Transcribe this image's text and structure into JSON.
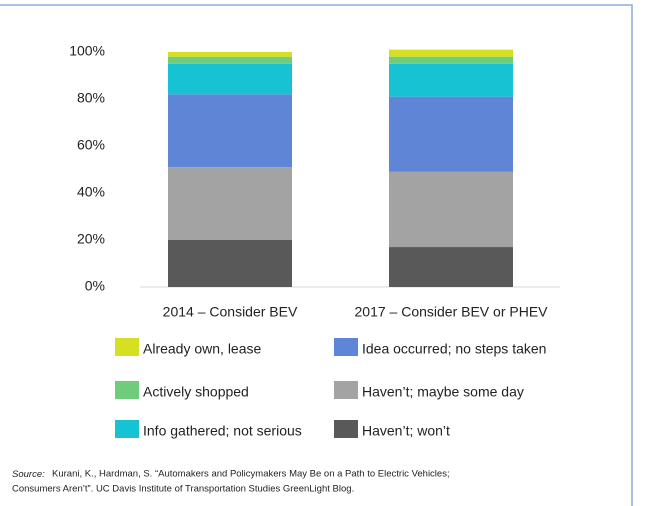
{
  "chart_data": {
    "type": "stacked_bar",
    "categories": [
      "2014 – Consider BEV",
      "2017 – Consider BEV or PHEV"
    ],
    "series": [
      {
        "name": "Haven’t; won’t",
        "color": "#595959",
        "values": [
          20,
          17
        ]
      },
      {
        "name": "Haven’t; maybe some day",
        "color": "#a3a3a3",
        "values": [
          31,
          32
        ]
      },
      {
        "name": "Idea occurred; no steps taken",
        "color": "#5f86d6",
        "values": [
          31,
          32
        ]
      },
      {
        "name": "Info gathered; not serious",
        "color": "#17c2d2",
        "values": [
          13,
          14
        ]
      },
      {
        "name": "Actively shopped",
        "color": "#6fcc7c",
        "values": [
          3,
          3
        ]
      },
      {
        "name": "Already own, lease",
        "color": "#d6df22",
        "values": [
          2,
          3
        ]
      }
    ],
    "ylim": [
      0,
      100
    ],
    "yticks": [
      {
        "value": 0,
        "label": "0%"
      },
      {
        "value": 20,
        "label": "20%"
      },
      {
        "value": 40,
        "label": "40%"
      },
      {
        "value": 60,
        "label": "60%"
      },
      {
        "value": 80,
        "label": "80%"
      },
      {
        "value": 100,
        "label": "100%"
      }
    ],
    "grid": false,
    "source_label": "Source:",
    "source_lines": [
      "Kurani, K., Hardman, S.  “Automakers and Policymakers May Be on a Path to Electric Vehicles;",
      "Consumers Aren’t”.  UC Davis Institute of Transportation Studies GreenLight Blog."
    ]
  }
}
